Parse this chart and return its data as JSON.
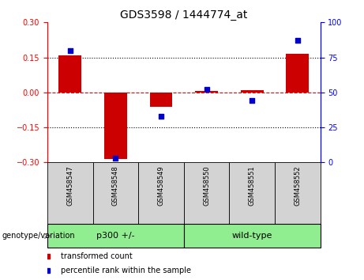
{
  "title": "GDS3598 / 1444774_at",
  "samples": [
    "GSM458547",
    "GSM458548",
    "GSM458549",
    "GSM458550",
    "GSM458551",
    "GSM458552"
  ],
  "bar_values": [
    0.16,
    -0.285,
    -0.06,
    0.005,
    0.008,
    0.165
  ],
  "percentile_values": [
    80,
    3,
    33,
    52,
    44,
    87
  ],
  "group_configs": [
    {
      "start": 0,
      "end": 2,
      "label": "p300 +/-",
      "color": "#90EE90"
    },
    {
      "start": 3,
      "end": 5,
      "label": "wild-type",
      "color": "#90EE90"
    }
  ],
  "group_label": "genotype/variation",
  "ylim_left": [
    -0.3,
    0.3
  ],
  "ylim_right": [
    0,
    100
  ],
  "yticks_left": [
    -0.3,
    -0.15,
    0,
    0.15,
    0.3
  ],
  "yticks_right": [
    0,
    25,
    50,
    75,
    100
  ],
  "hline_y": 0,
  "dotted_lines": [
    0.15,
    -0.15
  ],
  "bar_color": "#CC0000",
  "percentile_color": "#0000CC",
  "bar_width": 0.5,
  "sample_cell_color": "#D3D3D3",
  "legend_items": [
    {
      "label": "transformed count",
      "color": "#CC0000"
    },
    {
      "label": "percentile rank within the sample",
      "color": "#0000CC"
    }
  ],
  "title_fontsize": 10,
  "tick_fontsize": 7,
  "sample_fontsize": 6,
  "group_fontsize": 8
}
